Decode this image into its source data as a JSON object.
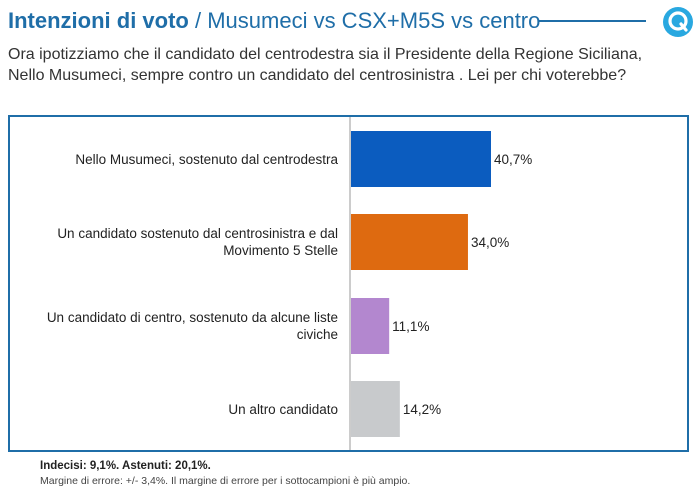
{
  "header": {
    "title_bold": "Intenzioni di voto",
    "title_rest": " / Musumeci vs CSX+M5S vs centro",
    "question": "Ora ipotizziamo che il candidato del centrodestra sia il Presidente della Regione Siciliana, Nello Musumeci, sempre contro un candidato del centrosinistra . Lei per chi voterebbe?"
  },
  "colors": {
    "accent": "#1f6ea8"
  },
  "chart_data": {
    "type": "bar",
    "orientation": "horizontal",
    "categories": [
      "Nello Musumeci, sostenuto dal centrodestra",
      "Un candidato sostenuto dal centrosinistra e dal Movimento 5 Stelle",
      "Un candidato di centro, sostenuto da alcune liste civiche",
      "Un altro candidato"
    ],
    "values": [
      40.7,
      34.0,
      11.1,
      14.2
    ],
    "value_labels": [
      "40,7%",
      "34,0%",
      "11,1%",
      "14,2%"
    ],
    "colors": [
      "#0b5cbf",
      "#de6a10",
      "#b387cf",
      "#c8cacc"
    ],
    "xlim": [
      0,
      100
    ],
    "unit": "%",
    "grid": false
  },
  "footer": {
    "note_bold": "Indecisi: 9,1%. Astenuti: 20,1%.",
    "note": "Margine di errore: +/- 3,4%. Il margine di errore per i sottocampioni è più ampio."
  }
}
